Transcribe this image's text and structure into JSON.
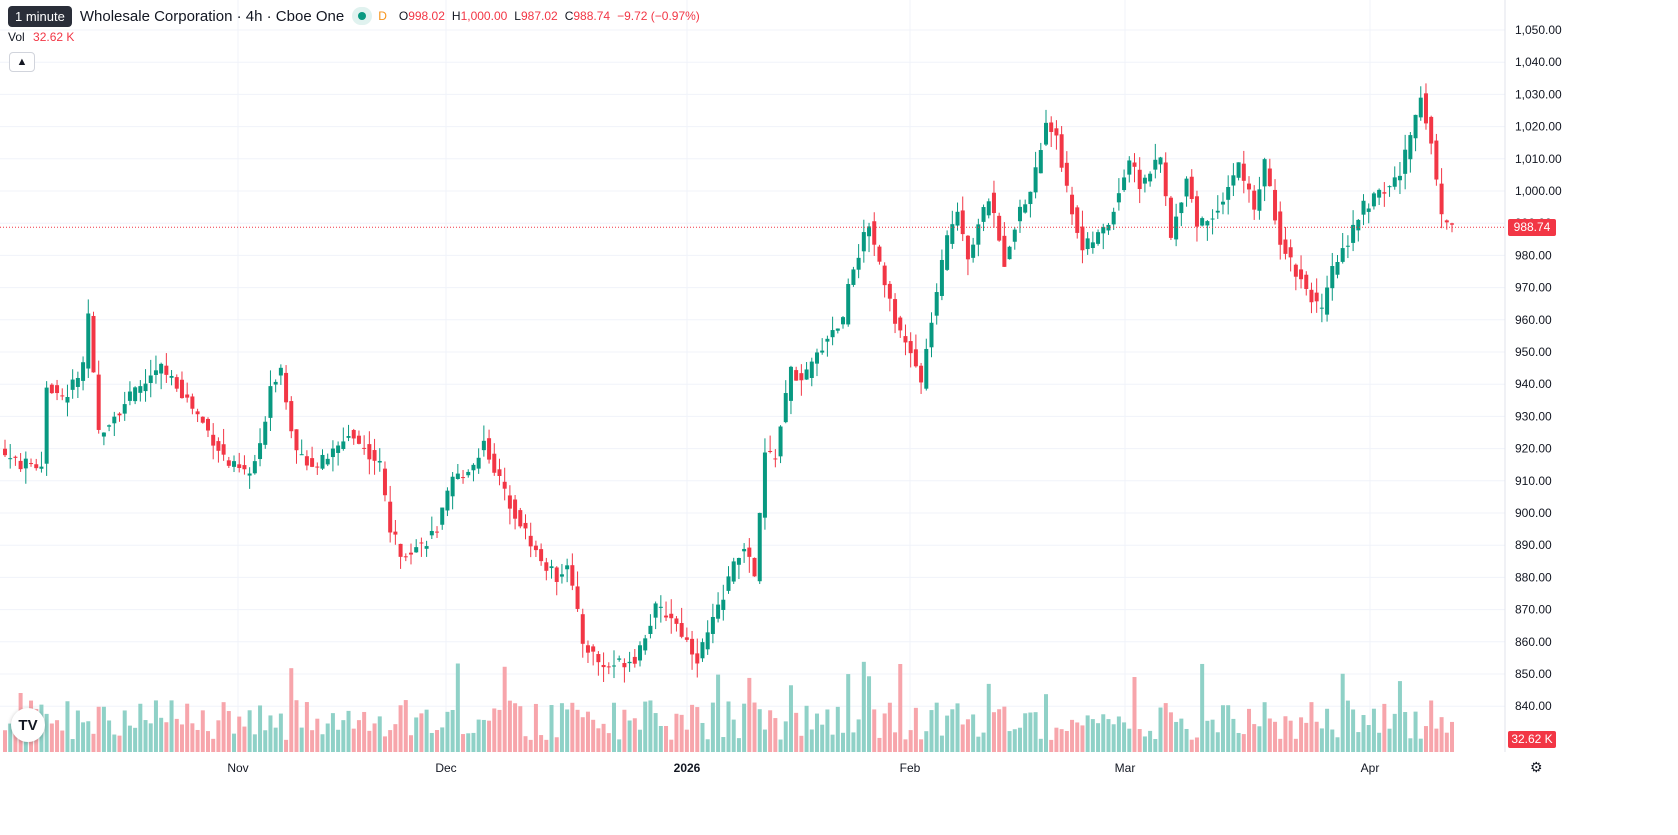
{
  "legend": {
    "interval": "1 minute",
    "symbol": "Wholesale Corporation · 4h · Cboe One",
    "badge": "D",
    "open_label": "O",
    "open": "998.02",
    "high_label": "H",
    "high": "1,000.00",
    "low_label": "L",
    "low": "987.02",
    "close_label": "C",
    "close": "988.74",
    "change": "−9.72 (−0.97%)"
  },
  "volume_legend": {
    "label": "Vol",
    "value": "32.62 K"
  },
  "icons": {
    "collapse": "chevron-up-icon",
    "logo": "tradingview-logo-icon",
    "settings": "gear-icon"
  },
  "logo_text": "TV",
  "colors": {
    "up": "#089981",
    "down": "#f23645",
    "up_volume": "#8fd1c7",
    "down_volume": "#f7a5ab",
    "grid": "#f0f3fa"
  },
  "price_labels": {
    "last": "988.74",
    "volume": "32.62 K"
  },
  "chart_data": {
    "type": "candlestick",
    "title": "Wholesale Corporation · 4h · Cboe One",
    "interval": "4h",
    "ylim": [
      830,
      1055
    ],
    "y_ticks": [
      "1,050.00",
      "1,040.00",
      "1,030.00",
      "1,020.00",
      "1,010.00",
      "1,000.00",
      "990.00",
      "980.00",
      "970.00",
      "960.00",
      "950.00",
      "940.00",
      "930.00",
      "920.00",
      "910.00",
      "900.00",
      "890.00",
      "880.00",
      "870.00",
      "860.00",
      "850.00",
      "840.00"
    ],
    "x_ticks": [
      "Nov",
      "Dec",
      "2026",
      "Feb",
      "Mar",
      "Apr"
    ],
    "anchors": [
      [
        0,
        918
      ],
      [
        3,
        915
      ],
      [
        7,
        915
      ],
      [
        8,
        940
      ],
      [
        11,
        935
      ],
      [
        15,
        945
      ],
      [
        16,
        960
      ],
      [
        18,
        925
      ],
      [
        24,
        936
      ],
      [
        30,
        945
      ],
      [
        33,
        940
      ],
      [
        38,
        928
      ],
      [
        43,
        915
      ],
      [
        47,
        912
      ],
      [
        49,
        920
      ],
      [
        51,
        940
      ],
      [
        53,
        945
      ],
      [
        56,
        918
      ],
      [
        60,
        915
      ],
      [
        64,
        920
      ],
      [
        66,
        925
      ],
      [
        72,
        915
      ],
      [
        74,
        895
      ],
      [
        76,
        888
      ],
      [
        80,
        890
      ],
      [
        83,
        895
      ],
      [
        86,
        910
      ],
      [
        90,
        915
      ],
      [
        92,
        922
      ],
      [
        95,
        910
      ],
      [
        98,
        900
      ],
      [
        103,
        885
      ],
      [
        106,
        880
      ],
      [
        108,
        885
      ],
      [
        111,
        860
      ],
      [
        115,
        852
      ],
      [
        121,
        855
      ],
      [
        125,
        870
      ],
      [
        128,
        868
      ],
      [
        133,
        855
      ],
      [
        137,
        870
      ],
      [
        139,
        880
      ],
      [
        142,
        890
      ],
      [
        144,
        880
      ],
      [
        146,
        918
      ],
      [
        148,
        918
      ],
      [
        151,
        945
      ],
      [
        153,
        940
      ],
      [
        158,
        955
      ],
      [
        161,
        960
      ],
      [
        162,
        972
      ],
      [
        166,
        990
      ],
      [
        168,
        978
      ],
      [
        172,
        955
      ],
      [
        174,
        950
      ],
      [
        176,
        940
      ],
      [
        178,
        960
      ],
      [
        181,
        985
      ],
      [
        183,
        995
      ],
      [
        185,
        980
      ],
      [
        189,
        998
      ],
      [
        192,
        978
      ],
      [
        194,
        990
      ],
      [
        197,
        1000
      ],
      [
        200,
        1020
      ],
      [
        202,
        1018
      ],
      [
        204,
        1000
      ],
      [
        207,
        982
      ],
      [
        210,
        986
      ],
      [
        212,
        990
      ],
      [
        216,
        1010
      ],
      [
        218,
        1002
      ],
      [
        222,
        1010
      ],
      [
        224,
        985
      ],
      [
        227,
        1005
      ],
      [
        229,
        990
      ],
      [
        232,
        992
      ],
      [
        237,
        1008
      ],
      [
        240,
        995
      ],
      [
        242,
        1008
      ],
      [
        245,
        985
      ],
      [
        248,
        975
      ],
      [
        250,
        970
      ],
      [
        253,
        962
      ],
      [
        255,
        975
      ],
      [
        258,
        985
      ],
      [
        261,
        995
      ],
      [
        265,
        1000
      ],
      [
        268,
        1005
      ],
      [
        272,
        1030
      ],
      [
        274,
        1015
      ],
      [
        276,
        992
      ],
      [
        278,
        990
      ]
    ],
    "last_close": 988.74
  }
}
